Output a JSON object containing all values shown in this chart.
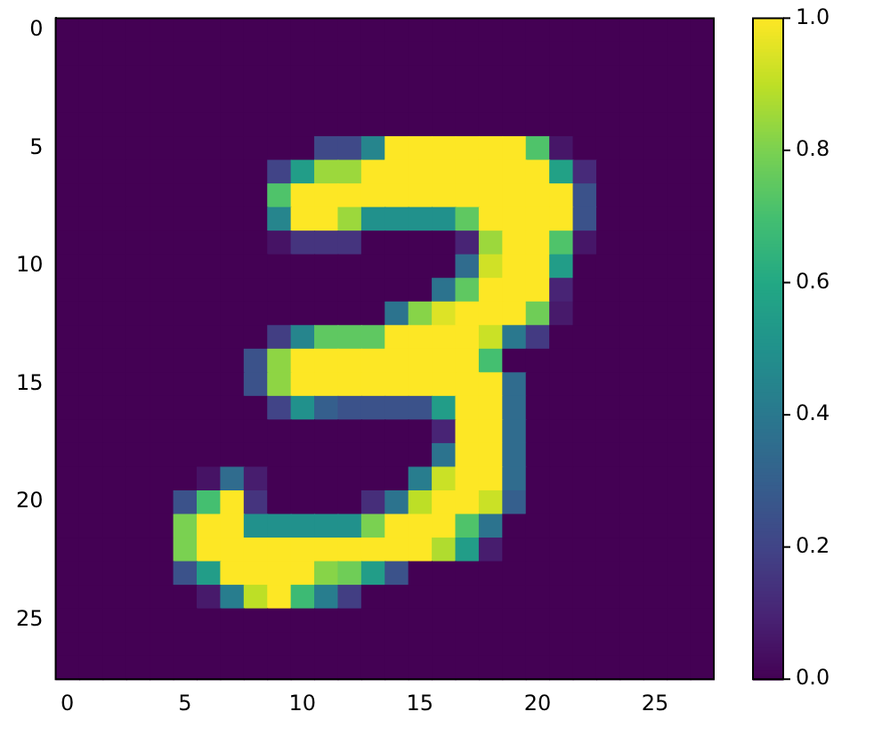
{
  "chart_data": {
    "type": "heatmap",
    "xlim": [
      -0.5,
      27.5
    ],
    "xticks": [
      0,
      5,
      10,
      15,
      20,
      25
    ],
    "ylim": [
      27.5,
      -0.5
    ],
    "yticks": [
      0,
      5,
      10,
      15,
      20,
      25
    ],
    "clim": [
      0,
      1
    ],
    "cticks": [
      {
        "value": 0,
        "label": "0.0"
      },
      {
        "value": 0.2,
        "label": "0.2"
      },
      {
        "value": 0.4,
        "label": "0.4"
      },
      {
        "value": 0.6,
        "label": "0.6"
      },
      {
        "value": 0.8,
        "label": "0.8"
      },
      {
        "value": 1,
        "label": "1.0"
      }
    ],
    "grid": false,
    "cells": [
      [
        0,
        0,
        0,
        0,
        0,
        0,
        0,
        0,
        0,
        0,
        0,
        0,
        0,
        0,
        0,
        0,
        0,
        0,
        0,
        0,
        0,
        0,
        0,
        0,
        0,
        0,
        0,
        0
      ],
      [
        0,
        0,
        0,
        0,
        0,
        0,
        0,
        0,
        0,
        0,
        0,
        0,
        0,
        0,
        0,
        0,
        0,
        0,
        0,
        0,
        0,
        0,
        0,
        0,
        0,
        0,
        0,
        0
      ],
      [
        0,
        0,
        0,
        0,
        0,
        0,
        0,
        0,
        0,
        0,
        0,
        0,
        0,
        0,
        0,
        0,
        0,
        0,
        0,
        0,
        0,
        0,
        0,
        0,
        0,
        0,
        0,
        0
      ],
      [
        0,
        0,
        0,
        0,
        0,
        0,
        0,
        0,
        0,
        0,
        0,
        0,
        0,
        0,
        0,
        0,
        0,
        0,
        0,
        0,
        0,
        0,
        0,
        0,
        0,
        0,
        0,
        0
      ],
      [
        0,
        0,
        0,
        0,
        0,
        0,
        0,
        0,
        0,
        0,
        0,
        0,
        0,
        0,
        0,
        0,
        0,
        0,
        0,
        0,
        0,
        0,
        0,
        0,
        0,
        0,
        0,
        0
      ],
      [
        0,
        0,
        0,
        0,
        0,
        0,
        0,
        0,
        0,
        0,
        0,
        0.22,
        0.22,
        0.45,
        1,
        1,
        1,
        1,
        1,
        1,
        0.72,
        0.06,
        0,
        0,
        0,
        0,
        0,
        0
      ],
      [
        0,
        0,
        0,
        0,
        0,
        0,
        0,
        0,
        0,
        0.2,
        0.55,
        0.85,
        0.85,
        1,
        1,
        1,
        1,
        1,
        1,
        1,
        1,
        0.57,
        0.12,
        0,
        0,
        0,
        0,
        0
      ],
      [
        0,
        0,
        0,
        0,
        0,
        0,
        0,
        0,
        0,
        0.72,
        1,
        1,
        1,
        1,
        1,
        1,
        1,
        1,
        1,
        1,
        1,
        1,
        0.25,
        0,
        0,
        0,
        0,
        0
      ],
      [
        0,
        0,
        0,
        0,
        0,
        0,
        0,
        0,
        0,
        0.45,
        1,
        1,
        0.85,
        0.5,
        0.5,
        0.5,
        0.5,
        0.75,
        1,
        1,
        1,
        1,
        0.25,
        0,
        0,
        0,
        0,
        0
      ],
      [
        0,
        0,
        0,
        0,
        0,
        0,
        0,
        0,
        0,
        0.05,
        0.15,
        0.15,
        0.15,
        0,
        0,
        0,
        0,
        0.1,
        0.85,
        1,
        1,
        0.72,
        0.06,
        0,
        0,
        0,
        0,
        0
      ],
      [
        0,
        0,
        0,
        0,
        0,
        0,
        0,
        0,
        0,
        0,
        0,
        0,
        0,
        0,
        0,
        0,
        0,
        0.35,
        0.93,
        1,
        1,
        0.55,
        0,
        0,
        0,
        0,
        0,
        0
      ],
      [
        0,
        0,
        0,
        0,
        0,
        0,
        0,
        0,
        0,
        0,
        0,
        0,
        0,
        0,
        0,
        0,
        0.38,
        0.75,
        1,
        1,
        1,
        0.1,
        0,
        0,
        0,
        0,
        0,
        0
      ],
      [
        0,
        0,
        0,
        0,
        0,
        0,
        0,
        0,
        0,
        0,
        0,
        0,
        0,
        0,
        0.38,
        0.82,
        0.95,
        1,
        1,
        1,
        0.78,
        0.07,
        0,
        0,
        0,
        0,
        0,
        0
      ],
      [
        0,
        0,
        0,
        0,
        0,
        0,
        0,
        0,
        0,
        0.18,
        0.45,
        0.75,
        0.75,
        0.75,
        1,
        1,
        1,
        1,
        0.92,
        0.4,
        0.17,
        0,
        0,
        0,
        0,
        0,
        0,
        0
      ],
      [
        0,
        0,
        0,
        0,
        0,
        0,
        0,
        0,
        0.25,
        0.83,
        1,
        1,
        1,
        1,
        1,
        1,
        1,
        1,
        0.7,
        0,
        0,
        0,
        0,
        0,
        0,
        0,
        0,
        0
      ],
      [
        0,
        0,
        0,
        0,
        0,
        0,
        0,
        0,
        0.25,
        0.83,
        1,
        1,
        1,
        1,
        1,
        1,
        1,
        1,
        1,
        0.35,
        0,
        0,
        0,
        0,
        0,
        0,
        0,
        0
      ],
      [
        0,
        0,
        0,
        0,
        0,
        0,
        0,
        0,
        0,
        0.2,
        0.5,
        0.3,
        0.25,
        0.25,
        0.25,
        0.25,
        0.55,
        1,
        1,
        0.35,
        0,
        0,
        0,
        0,
        0,
        0,
        0,
        0
      ],
      [
        0,
        0,
        0,
        0,
        0,
        0,
        0,
        0,
        0,
        0,
        0,
        0,
        0,
        0,
        0,
        0,
        0.1,
        1,
        1,
        0.35,
        0,
        0,
        0,
        0,
        0,
        0,
        0,
        0
      ],
      [
        0,
        0,
        0,
        0,
        0,
        0,
        0,
        0,
        0,
        0,
        0,
        0,
        0,
        0,
        0,
        0,
        0.38,
        1,
        1,
        0.35,
        0,
        0,
        0,
        0,
        0,
        0,
        0,
        0
      ],
      [
        0,
        0,
        0,
        0,
        0,
        0,
        0.05,
        0.35,
        0.08,
        0,
        0,
        0,
        0,
        0,
        0,
        0.42,
        0.92,
        1,
        1,
        0.35,
        0,
        0,
        0,
        0,
        0,
        0,
        0,
        0
      ],
      [
        0,
        0,
        0,
        0,
        0,
        0.25,
        0.7,
        1,
        0.15,
        0,
        0,
        0,
        0,
        0.13,
        0.38,
        0.9,
        1,
        1,
        0.92,
        0.3,
        0,
        0,
        0,
        0,
        0,
        0,
        0,
        0
      ],
      [
        0,
        0,
        0,
        0,
        0,
        0.8,
        1,
        1,
        0.5,
        0.5,
        0.5,
        0.5,
        0.5,
        0.8,
        1,
        1,
        1,
        0.72,
        0.38,
        0,
        0,
        0,
        0,
        0,
        0,
        0,
        0,
        0
      ],
      [
        0,
        0,
        0,
        0,
        0,
        0.8,
        1,
        1,
        1,
        1,
        1,
        1,
        1,
        1,
        1,
        1,
        0.88,
        0.55,
        0.08,
        0,
        0,
        0,
        0,
        0,
        0,
        0,
        0,
        0
      ],
      [
        0,
        0,
        0,
        0,
        0,
        0.25,
        0.55,
        1,
        1,
        1,
        1,
        0.82,
        0.78,
        0.55,
        0.25,
        0,
        0,
        0,
        0,
        0,
        0,
        0,
        0,
        0,
        0,
        0,
        0,
        0
      ],
      [
        0,
        0,
        0,
        0,
        0,
        0,
        0.07,
        0.42,
        0.9,
        1,
        0.68,
        0.42,
        0.18,
        0,
        0,
        0,
        0,
        0,
        0,
        0,
        0,
        0,
        0,
        0,
        0,
        0,
        0,
        0
      ],
      [
        0,
        0,
        0,
        0,
        0,
        0,
        0,
        0,
        0,
        0,
        0,
        0,
        0,
        0,
        0,
        0,
        0,
        0,
        0,
        0,
        0,
        0,
        0,
        0,
        0,
        0,
        0,
        0
      ],
      [
        0,
        0,
        0,
        0,
        0,
        0,
        0,
        0,
        0,
        0,
        0,
        0,
        0,
        0,
        0,
        0,
        0,
        0,
        0,
        0,
        0,
        0,
        0,
        0,
        0,
        0,
        0,
        0
      ],
      [
        0,
        0,
        0,
        0,
        0,
        0,
        0,
        0,
        0,
        0,
        0,
        0,
        0,
        0,
        0,
        0,
        0,
        0,
        0,
        0,
        0,
        0,
        0,
        0,
        0,
        0,
        0,
        0
      ]
    ]
  }
}
